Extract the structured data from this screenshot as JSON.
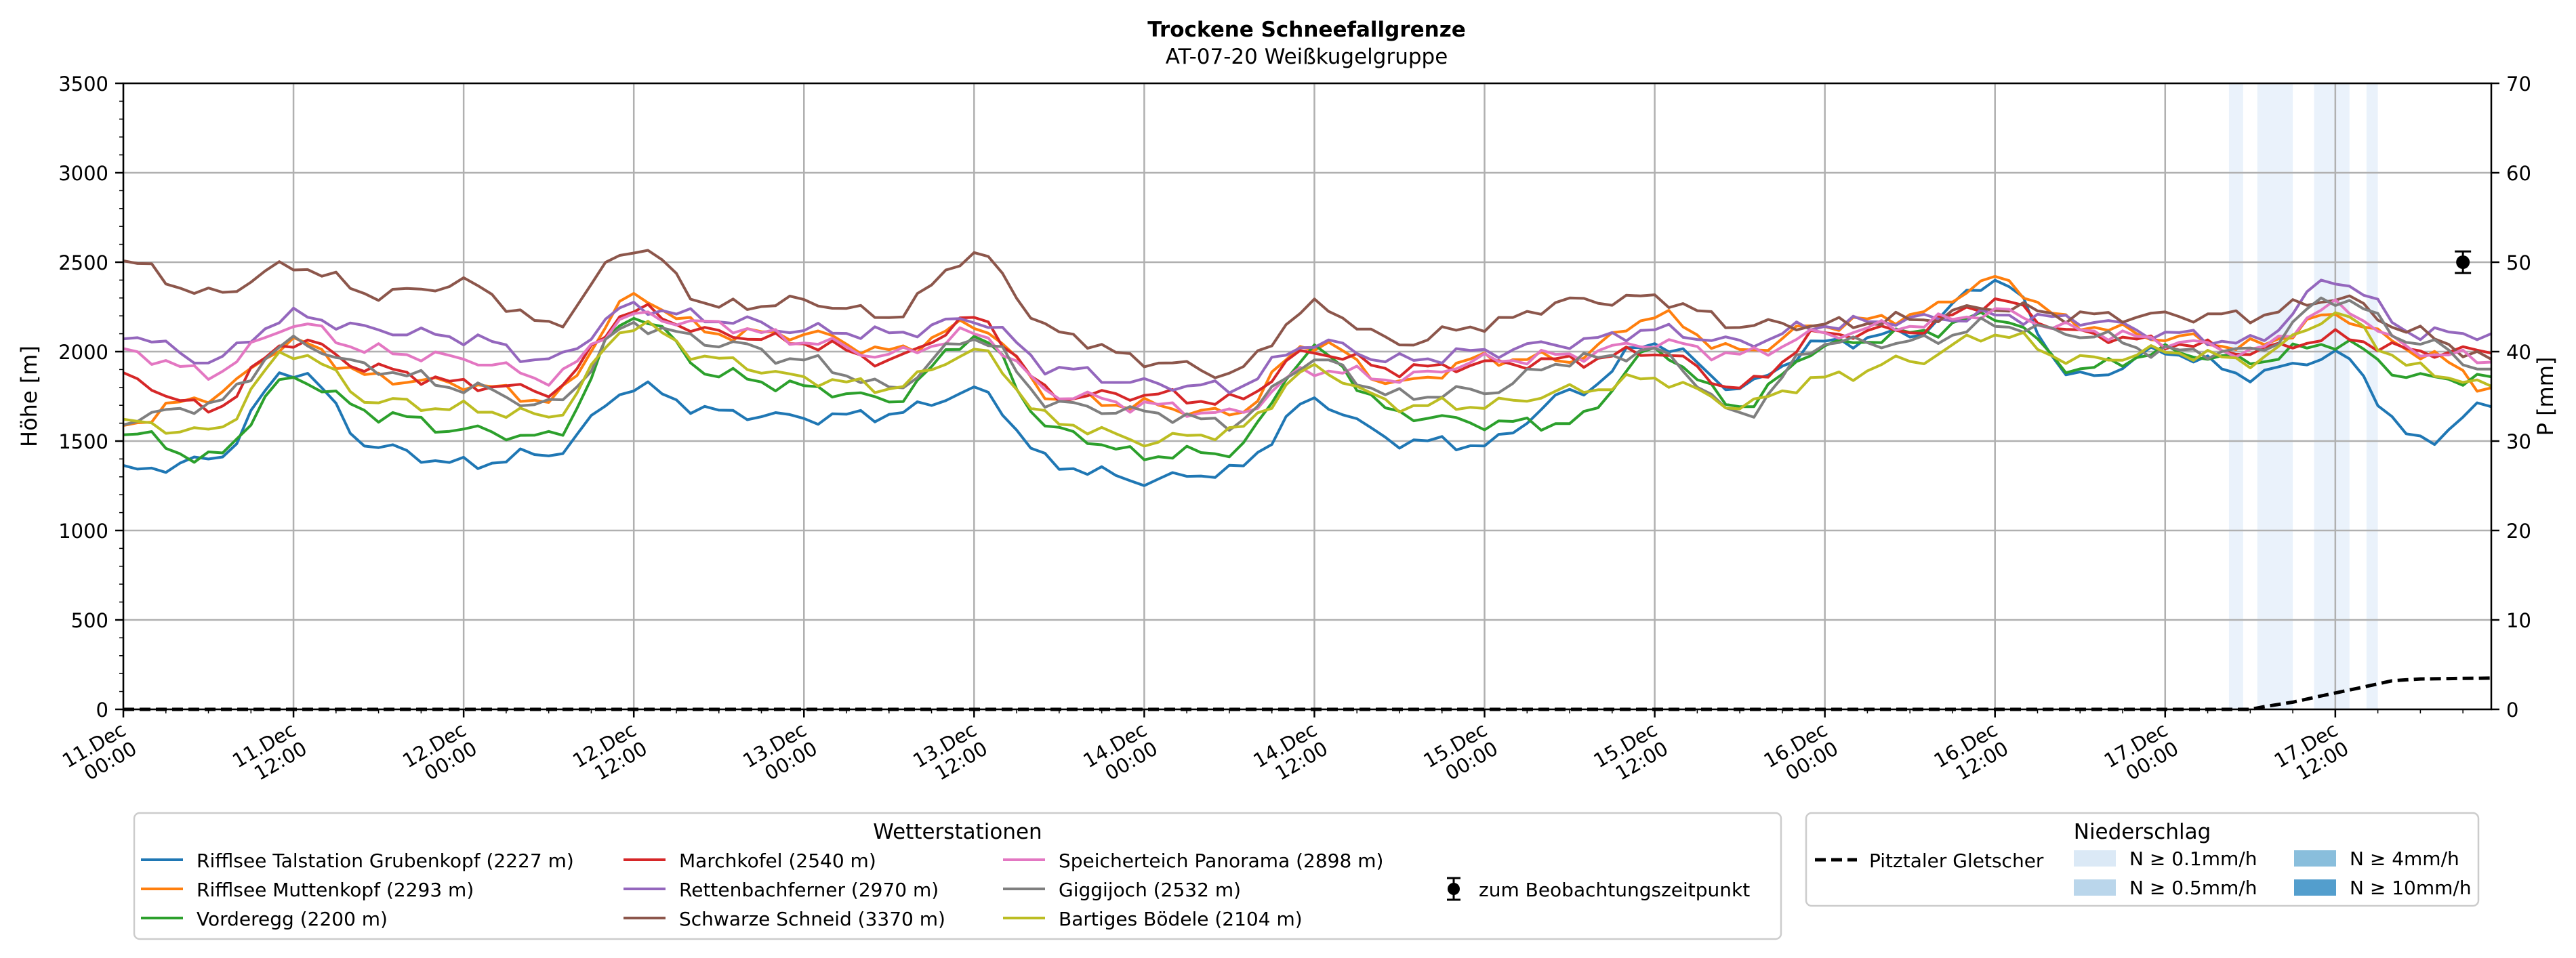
{
  "chart_data": {
    "type": "line",
    "title": "Trockene Schneefallgrenze",
    "subtitle": "AT-07-20 Weißkugelgruppe",
    "ylabel": "Höhe [m]",
    "ylabel_right": "P [mm]",
    "ylim": [
      0,
      3500
    ],
    "ylim_right": [
      0,
      70
    ],
    "yticks": [
      0,
      500,
      1000,
      1500,
      2000,
      2500,
      3000,
      3500
    ],
    "yticks_right": [
      0,
      10,
      20,
      30,
      40,
      50,
      60,
      70
    ],
    "grid": true,
    "x_range_hours": [
      0,
      167
    ],
    "xticks": [
      {
        "h": 0,
        "label": [
          "11.Dec",
          "00:00"
        ]
      },
      {
        "h": 12,
        "label": [
          "11.Dec",
          "12:00"
        ]
      },
      {
        "h": 24,
        "label": [
          "12.Dec",
          "00:00"
        ]
      },
      {
        "h": 36,
        "label": [
          "12.Dec",
          "12:00"
        ]
      },
      {
        "h": 48,
        "label": [
          "13.Dec",
          "00:00"
        ]
      },
      {
        "h": 60,
        "label": [
          "13.Dec",
          "12:00"
        ]
      },
      {
        "h": 72,
        "label": [
          "14.Dec",
          "00:00"
        ]
      },
      {
        "h": 84,
        "label": [
          "14.Dec",
          "12:00"
        ]
      },
      {
        "h": 96,
        "label": [
          "15.Dec",
          "00:00"
        ]
      },
      {
        "h": 108,
        "label": [
          "15.Dec",
          "12:00"
        ]
      },
      {
        "h": 120,
        "label": [
          "16.Dec",
          "00:00"
        ]
      },
      {
        "h": 132,
        "label": [
          "16.Dec",
          "12:00"
        ]
      },
      {
        "h": 144,
        "label": [
          "17.Dec",
          "00:00"
        ]
      },
      {
        "h": 156,
        "label": [
          "17.Dec",
          "12:00"
        ]
      }
    ],
    "key_hours": [
      0,
      6,
      12,
      18,
      24,
      30,
      36,
      42,
      48,
      54,
      60,
      66,
      72,
      78,
      84,
      90,
      96,
      102,
      108,
      114,
      120,
      126,
      132,
      138,
      144,
      150,
      156,
      162,
      167
    ],
    "series": [
      {
        "name": "Rifflsee Talstation Grubenkopf (2227 m)",
        "color": "#1f77b4",
        "values": [
          1330,
          1390,
          1900,
          1460,
          1370,
          1430,
          1800,
          1660,
          1630,
          1650,
          1780,
          1360,
          1280,
          1330,
          1720,
          1500,
          1480,
          1760,
          2050,
          1800,
          2050,
          2100,
          2400,
          1850,
          2000,
          1870,
          1980,
          1500,
          1700
        ]
      },
      {
        "name": "Rifflsee Muttenkopf (2293 m)",
        "color": "#ff7f0e",
        "values": [
          1600,
          1750,
          2050,
          1850,
          1820,
          1730,
          2300,
          2100,
          2100,
          2000,
          2150,
          1740,
          1700,
          1650,
          2050,
          1820,
          1960,
          1960,
          2200,
          2000,
          2150,
          2200,
          2400,
          2150,
          2080,
          2030,
          2200,
          2000,
          1800
        ]
      },
      {
        "name": "Vorderegg (2200 m)",
        "color": "#2ca02c",
        "values": [
          1550,
          1400,
          1850,
          1650,
          1560,
          1520,
          2200,
          1870,
          1800,
          1730,
          2080,
          1550,
          1420,
          1440,
          2000,
          1650,
          1600,
          1600,
          2000,
          1700,
          2030,
          2100,
          2200,
          1900,
          2000,
          1950,
          2050,
          1850,
          1850
        ]
      },
      {
        "name": "Marchkofel (2540 m)",
        "color": "#d62728",
        "values": [
          1850,
          1680,
          2060,
          1900,
          1820,
          1780,
          2230,
          2100,
          2050,
          1950,
          2180,
          1750,
          1760,
          1720,
          2000,
          1900,
          1930,
          1950,
          2000,
          1800,
          2100,
          2120,
          2280,
          2100,
          2050,
          2000,
          2080,
          2000,
          2000
        ]
      },
      {
        "name": "Rettenbachferner (2970 m)",
        "color": "#9467bd",
        "values": [
          2100,
          1950,
          2200,
          2120,
          2080,
          1950,
          2250,
          2180,
          2120,
          2100,
          2180,
          1900,
          1820,
          1800,
          2050,
          1950,
          2000,
          2050,
          2120,
          2050,
          2150,
          2180,
          2200,
          2180,
          2100,
          2050,
          2400,
          2100,
          2100
        ]
      },
      {
        "name": "Schwarze Schneid (3370 m)",
        "color": "#8c564b",
        "values": [
          2500,
          2320,
          2480,
          2320,
          2380,
          2150,
          2580,
          2250,
          2280,
          2200,
          2540,
          2100,
          1950,
          1880,
          2250,
          2050,
          2150,
          2280,
          2300,
          2150,
          2150,
          2180,
          2250,
          2200,
          2200,
          2200,
          2300,
          2100,
          1950
        ]
      },
      {
        "name": "Speicherteich Panorama (2898 m)",
        "color": "#e377c2",
        "values": [
          2000,
          1880,
          2150,
          2000,
          1960,
          1850,
          2200,
          2150,
          2060,
          1980,
          2100,
          1760,
          1700,
          1650,
          1900,
          1850,
          1950,
          1980,
          2050,
          1980,
          2100,
          2150,
          2220,
          2120,
          2060,
          2000,
          2250,
          2000,
          1950
        ]
      },
      {
        "name": "Giggijoch (2532 m)",
        "color": "#7f7f7f",
        "values": [
          1620,
          1700,
          2050,
          1900,
          1800,
          1700,
          2150,
          2050,
          1950,
          1800,
          2080,
          1700,
          1660,
          1600,
          1950,
          1750,
          1780,
          1950,
          2000,
          1650,
          2050,
          2050,
          2150,
          2100,
          2000,
          2000,
          2300,
          2050,
          1900
        ]
      },
      {
        "name": "Bartiges Bödele (2104 m)",
        "color": "#bcbd22",
        "values": [
          1600,
          1550,
          2000,
          1720,
          1680,
          1640,
          2150,
          1950,
          1850,
          1800,
          2000,
          1600,
          1500,
          1550,
          1900,
          1700,
          1700,
          1780,
          1850,
          1700,
          1850,
          1950,
          2100,
          1950,
          2000,
          1950,
          2200,
          1900,
          1800
        ]
      }
    ],
    "observation": {
      "label": "zum Beobachtungszeitpunkt",
      "h": 165,
      "value": 2500,
      "err": 60
    },
    "precip": {
      "name": "Pitztaler Gletscher",
      "key_hours": [
        0,
        150,
        151,
        153,
        155,
        158,
        160,
        162,
        167
      ],
      "values_mm": [
        0,
        0,
        0.3,
        0.8,
        1.5,
        2.5,
        3.2,
        3.4,
        3.5
      ]
    },
    "precip_bands": [
      {
        "from": 148.5,
        "to": 149.5,
        "intensity": "0.1"
      },
      {
        "from": 150.5,
        "to": 153.0,
        "intensity": "0.1"
      },
      {
        "from": 154.5,
        "to": 157.0,
        "intensity": "0.1"
      },
      {
        "from": 158.2,
        "to": 159.0,
        "intensity": "0.1"
      }
    ],
    "legend_stations": {
      "title": "Wetterstationen",
      "observation_label": "zum Beobachtungszeitpunkt"
    },
    "legend_precip": {
      "title": "Niederschlag",
      "line_label": "Pitztaler Gletscher",
      "items": [
        {
          "label": "N ≥ 0.1mm/h",
          "color": "#dbe9f6"
        },
        {
          "label": "N ≥ 0.5mm/h",
          "color": "#bad6eb"
        },
        {
          "label": "N ≥ 4mm/h",
          "color": "#89bedc"
        },
        {
          "label": "N ≥ 10mm/h",
          "color": "#539ecd"
        }
      ]
    }
  }
}
